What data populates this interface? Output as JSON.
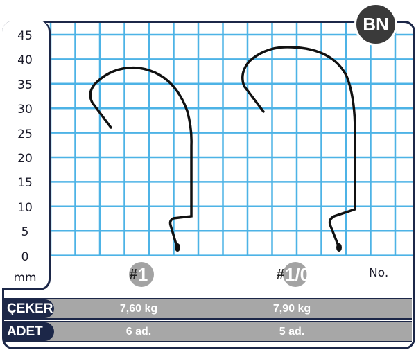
{
  "badge": "BN",
  "y_axis": {
    "ticks": [
      "45",
      "40",
      "35",
      "30",
      "25",
      "20",
      "15",
      "10",
      "5",
      "0"
    ],
    "unit": "mm"
  },
  "sizes": [
    {
      "hash": "#",
      "label": "1"
    },
    {
      "hash": "#",
      "label": "1/0"
    }
  ],
  "size_header": "No.",
  "rows": [
    {
      "label": "ÇEKER",
      "values": [
        "7,60 kg",
        "7,90 kg"
      ]
    },
    {
      "label": "ADET",
      "values": [
        "6 ad.",
        "5 ad."
      ]
    }
  ],
  "colors": {
    "grid": "#4db3e6",
    "frame": "#1c2748",
    "bar": "#a7a7a7",
    "badge": "#3a3a3a"
  }
}
